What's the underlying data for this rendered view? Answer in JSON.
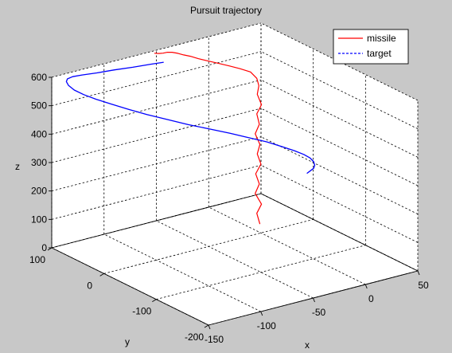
{
  "chart_data": {
    "type": "line",
    "dimensions": 3,
    "title": "Pursuit trajectory",
    "xlabel": "x",
    "ylabel": "y",
    "zlabel": "z",
    "xlim": [
      -150,
      50
    ],
    "ylim": [
      -200,
      100
    ],
    "zlim": [
      0,
      600
    ],
    "xticks": [
      -150,
      -100,
      -50,
      0,
      50
    ],
    "yticks": [
      -200,
      -100,
      0,
      100
    ],
    "zticks": [
      0,
      100,
      200,
      300,
      400,
      500,
      600
    ],
    "xtick_labels": [
      "-150",
      "-100",
      "-50",
      "0",
      "50"
    ],
    "ytick_labels": [
      "-200",
      "-100",
      "0",
      "100"
    ],
    "ztick_labels": [
      "0",
      "100",
      "200",
      "300",
      "400",
      "500",
      "600"
    ],
    "grid": true,
    "box": true,
    "legend_position": "top-right",
    "legend": [
      "missile",
      "target"
    ],
    "series": [
      {
        "name": "missile",
        "color": "#ff0000",
        "line_style": "solid",
        "points": [
          [
            -2,
            -2,
            35
          ],
          [
            -3,
            2,
            70
          ],
          [
            -1,
            -3,
            105
          ],
          [
            -4,
            3,
            140
          ],
          [
            -2,
            -1,
            175
          ],
          [
            -4,
            2,
            210
          ],
          [
            -1,
            -2,
            245
          ],
          [
            -3,
            1,
            280
          ],
          [
            -2,
            -2,
            315
          ],
          [
            -4,
            3,
            350
          ],
          [
            -2,
            -1,
            385
          ],
          [
            -3,
            2,
            420
          ],
          [
            -1,
            -3,
            455
          ],
          [
            -3,
            1,
            490
          ],
          [
            -2,
            0,
            520
          ],
          [
            -3,
            2,
            545
          ],
          [
            -6,
            8,
            565
          ],
          [
            -12,
            16,
            575
          ],
          [
            -18,
            24,
            583
          ],
          [
            -24,
            32,
            590
          ],
          [
            -30,
            40,
            597
          ],
          [
            -36,
            48,
            604
          ],
          [
            -40,
            55,
            610
          ],
          [
            -44,
            60,
            614
          ],
          [
            -47,
            65,
            618
          ],
          [
            -50,
            70,
            620
          ],
          [
            -53,
            73,
            620
          ],
          [
            -56,
            75,
            618
          ],
          [
            -59,
            77,
            618
          ],
          [
            -62,
            80,
            619
          ]
        ]
      },
      {
        "name": "target",
        "color": "#0000ff",
        "line_style": "dashed",
        "points": [
          [
            -40,
            -168,
            400
          ],
          [
            -35,
            -165,
            402
          ],
          [
            -31,
            -163,
            405
          ],
          [
            -28,
            -159,
            409
          ],
          [
            -26,
            -153,
            414
          ],
          [
            -26,
            -146,
            421
          ],
          [
            -28,
            -138,
            428
          ],
          [
            -32,
            -128,
            436
          ],
          [
            -38,
            -115,
            445
          ],
          [
            -45,
            -101,
            455
          ],
          [
            -54,
            -86,
            464
          ],
          [
            -64,
            -69,
            474
          ],
          [
            -75,
            -51,
            484
          ],
          [
            -86,
            -33,
            493
          ],
          [
            -96,
            -14,
            503
          ],
          [
            -106,
            6,
            512
          ],
          [
            -114,
            25,
            521
          ],
          [
            -121,
            44,
            529
          ],
          [
            -127,
            61,
            536
          ],
          [
            -131,
            77,
            542
          ],
          [
            -133,
            91,
            547
          ],
          [
            -132,
            104,
            551
          ],
          [
            -130,
            112,
            555
          ],
          [
            -127,
            116,
            558
          ],
          [
            -122,
            116,
            561
          ],
          [
            -115,
            112,
            564
          ],
          [
            -104,
            106,
            566
          ],
          [
            -90,
            100,
            569
          ],
          [
            -76,
            93,
            571
          ],
          [
            -62,
            87,
            574
          ],
          [
            -52,
            82,
            576
          ]
        ]
      }
    ]
  }
}
